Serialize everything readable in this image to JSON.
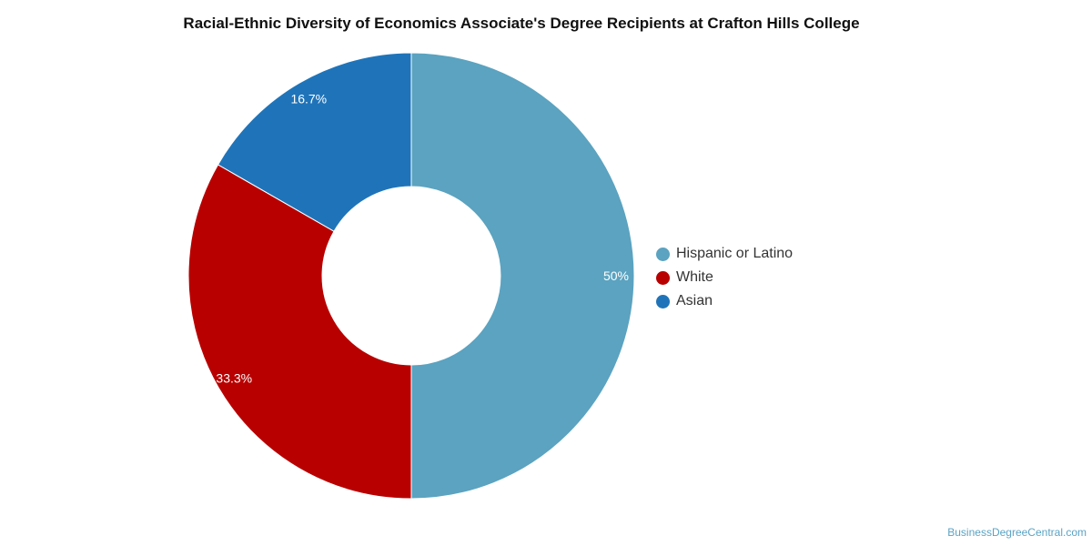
{
  "chart_data": {
    "type": "pie",
    "donut": true,
    "title": "Racial-Ethnic Diversity of Economics Associate's Degree Recipients at Crafton Hills College",
    "categories": [
      "Hispanic or Latino",
      "White",
      "Asian"
    ],
    "values": [
      50,
      33.3,
      16.7
    ],
    "data_labels": [
      "50%",
      "33.3%",
      "16.7%"
    ],
    "colors": [
      "#5ba3c0",
      "#b80000",
      "#1f74b9"
    ],
    "legend_position": "right"
  },
  "source": "BusinessDegreeCentral.com"
}
